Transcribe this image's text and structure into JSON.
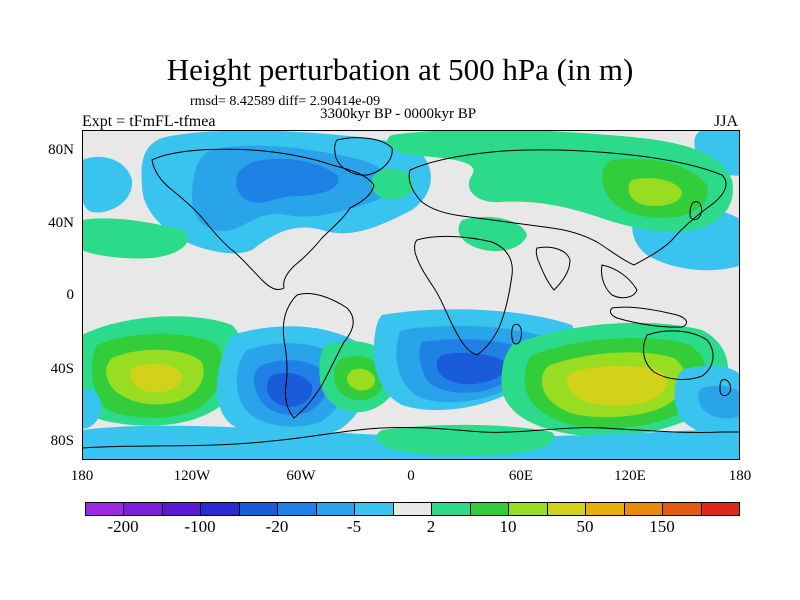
{
  "title": "Height perturbation at 500 hPa (in m)",
  "stats": "rmsd= 8.42589 diff= 2.90414e-09",
  "period": "3300kyr BP - 0000kyr BP",
  "experiment": "Expt = tFmFL-tfmea",
  "season": "JJA",
  "lat_ticks": [
    "80N",
    "40N",
    "0",
    "40S",
    "80S"
  ],
  "lon_ticks": [
    "180",
    "120W",
    "60W",
    "0",
    "60E",
    "120E",
    "180"
  ],
  "colorbar": {
    "colors": [
      "#9a2be2",
      "#7b1fd9",
      "#5b1ad6",
      "#2b2bd6",
      "#1a5bd9",
      "#1f80e6",
      "#29a3ea",
      "#38c4ee",
      "#e8e8e8",
      "#2bdb8a",
      "#33cc3a",
      "#99dd22",
      "#d2d21a",
      "#e6b00a",
      "#e88a0a",
      "#e45a0f",
      "#e0281a"
    ],
    "labels": [
      "-200",
      "-100",
      "-20",
      "-5",
      "2",
      "10",
      "50",
      "150"
    ]
  },
  "map_colors": {
    "background": "#e8e8e8",
    "neg_light": "#38c4ee",
    "neg_mid": "#29a3ea",
    "neg_strong": "#1f80e6",
    "neg_deep": "#1a5bd9",
    "neg_core": "#2b2bd6",
    "pos_light": "#2bdb8a",
    "pos_mid": "#33cc3a",
    "pos_strong": "#99dd22",
    "pos_peak": "#d2d21a",
    "pos_core": "#e6b00a"
  }
}
